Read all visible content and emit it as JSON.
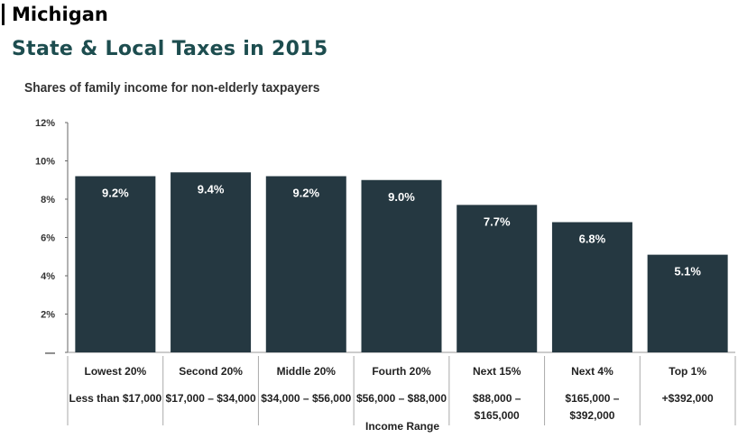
{
  "header": {
    "state": "Michigan"
  },
  "chart_data": {
    "type": "bar",
    "title": "State & Local Taxes in 2015",
    "subtitle": "Shares of family income for non-elderly taxpayers",
    "xlabel": "Income Range",
    "ylabel": "",
    "ylim": [
      0,
      12
    ],
    "yticks": [
      "12%",
      "10%",
      "8%",
      "6%",
      "4%",
      "2%",
      "—"
    ],
    "categories": [
      "Lowest 20%",
      "Second 20%",
      "Middle 20%",
      "Fourth 20%",
      "Next 15%",
      "Next 4%",
      "Top 1%"
    ],
    "ranges": [
      [
        "Less than $17,000"
      ],
      [
        "$17,000 – $34,000"
      ],
      [
        "$34,000 – $56,000"
      ],
      [
        "$56,000 – $88,000"
      ],
      [
        "$88,000 –",
        "$165,000"
      ],
      [
        "$165,000 –",
        "$392,000"
      ],
      [
        "+$392,000"
      ]
    ],
    "values": [
      9.2,
      9.4,
      9.2,
      9.0,
      7.7,
      6.8,
      5.1
    ],
    "value_labels": [
      "9.2%",
      "9.4%",
      "9.2%",
      "9.0%",
      "7.7%",
      "6.8%",
      "5.1%"
    ],
    "grid": false,
    "bar_color": "#253841"
  }
}
